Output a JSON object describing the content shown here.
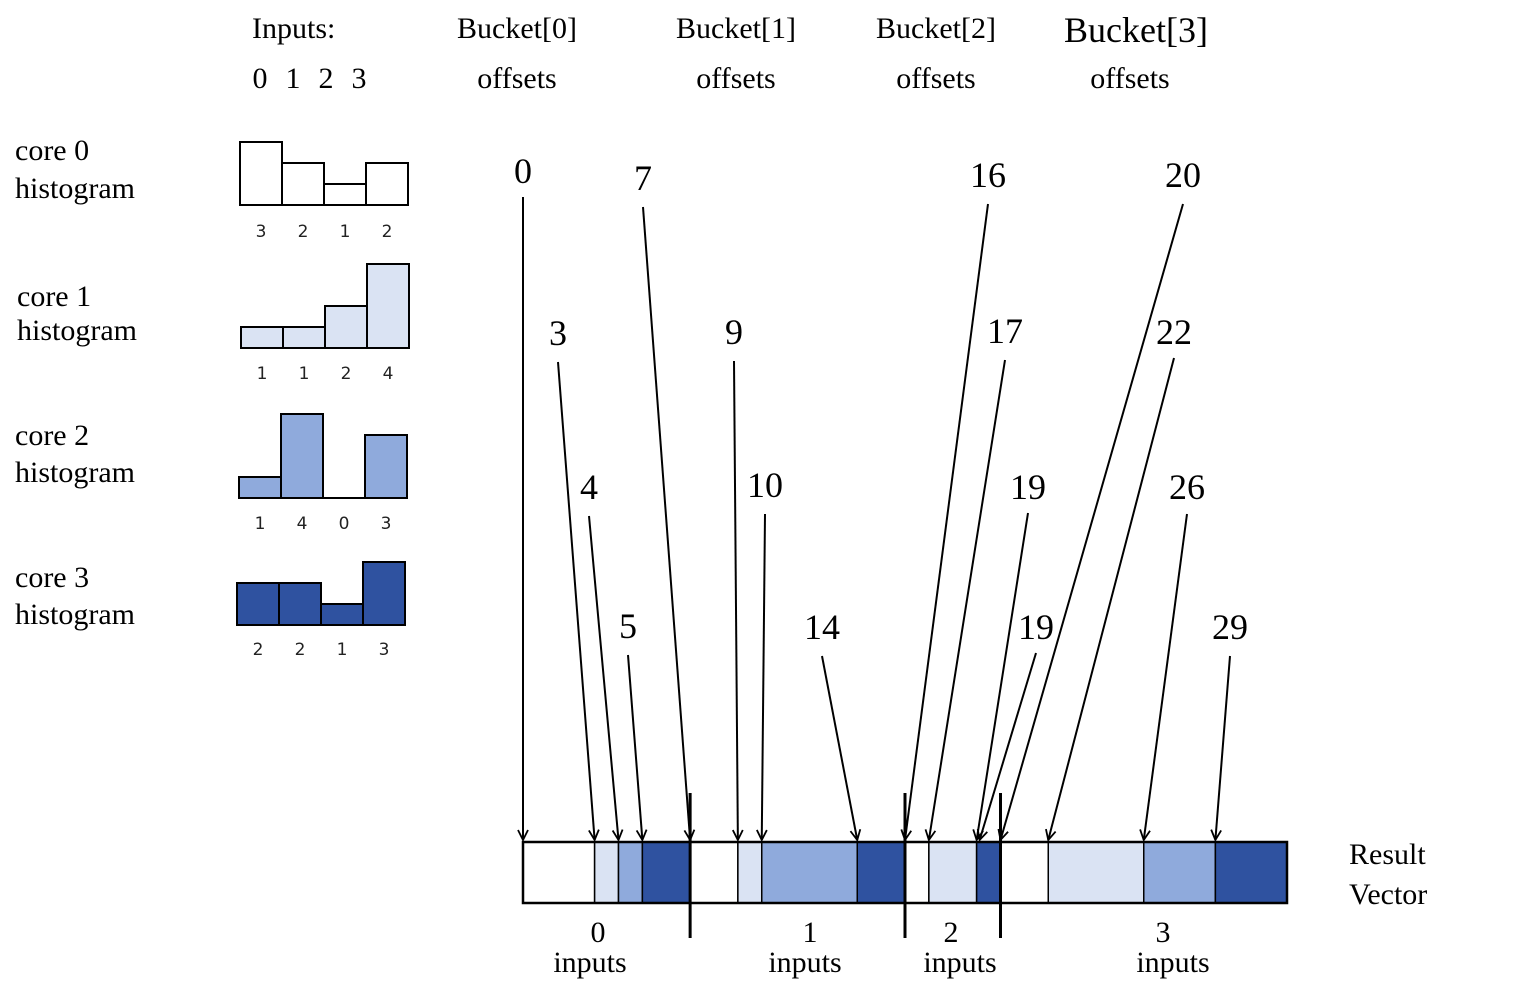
{
  "header": {
    "inputs_label": "Inputs:",
    "inputs_indices": [
      "0",
      "1",
      "2",
      "3"
    ],
    "bucket_titles": [
      "Bucket[0]",
      "Bucket[1]",
      "Bucket[2]",
      "Bucket[3]"
    ],
    "offsets_label": "offsets"
  },
  "colors": {
    "core0": "#ffffff",
    "core1": "#dae3f3",
    "core2": "#8faadc",
    "core3": "#2f52a0",
    "stroke": "#000000"
  },
  "cores": [
    {
      "name": "core 0",
      "sub": "histogram",
      "counts": [
        3,
        2,
        1,
        2
      ],
      "count_labels": [
        "3",
        "2",
        "1",
        "2"
      ]
    },
    {
      "name": "core 1",
      "sub": "histogram",
      "counts": [
        1,
        1,
        2,
        4
      ],
      "count_labels": [
        "1",
        "1",
        "2",
        "4"
      ]
    },
    {
      "name": "core 2",
      "sub": "histogram",
      "counts": [
        1,
        4,
        0,
        3
      ],
      "count_labels": [
        "1",
        "4",
        "0",
        "3"
      ]
    },
    {
      "name": "core 3",
      "sub": "histogram",
      "counts": [
        2,
        2,
        1,
        3
      ],
      "count_labels": [
        "2",
        "2",
        "1",
        "3"
      ]
    }
  ],
  "offsets": [
    {
      "value": "0"
    },
    {
      "value": "3"
    },
    {
      "value": "4"
    },
    {
      "value": "5"
    },
    {
      "value": "7"
    },
    {
      "value": "9"
    },
    {
      "value": "10"
    },
    {
      "value": "14"
    },
    {
      "value": "16"
    },
    {
      "value": "17"
    },
    {
      "value": "19"
    },
    {
      "value": "19"
    },
    {
      "value": "20"
    },
    {
      "value": "22"
    },
    {
      "value": "26"
    },
    {
      "value": "29"
    }
  ],
  "result_vector": {
    "label_line1": "Result",
    "label_line2": "Vector",
    "total": 32,
    "segments": [
      {
        "len": 3,
        "core": 0
      },
      {
        "len": 1,
        "core": 1
      },
      {
        "len": 1,
        "core": 2
      },
      {
        "len": 2,
        "core": 3
      },
      {
        "len": 2,
        "core": 0
      },
      {
        "len": 1,
        "core": 1
      },
      {
        "len": 4,
        "core": 2
      },
      {
        "len": 2,
        "core": 3
      },
      {
        "len": 1,
        "core": 0
      },
      {
        "len": 2,
        "core": 1
      },
      {
        "len": 0,
        "core": 2
      },
      {
        "len": 1,
        "core": 3
      },
      {
        "len": 2,
        "core": 0
      },
      {
        "len": 4,
        "core": 1
      },
      {
        "len": 3,
        "core": 2
      },
      {
        "len": 3,
        "core": 3
      }
    ]
  },
  "group_labels": [
    {
      "num": "0",
      "word": "inputs"
    },
    {
      "num": "1",
      "word": "inputs"
    },
    {
      "num": "2",
      "word": "inputs"
    },
    {
      "num": "3",
      "word": "inputs"
    }
  ]
}
